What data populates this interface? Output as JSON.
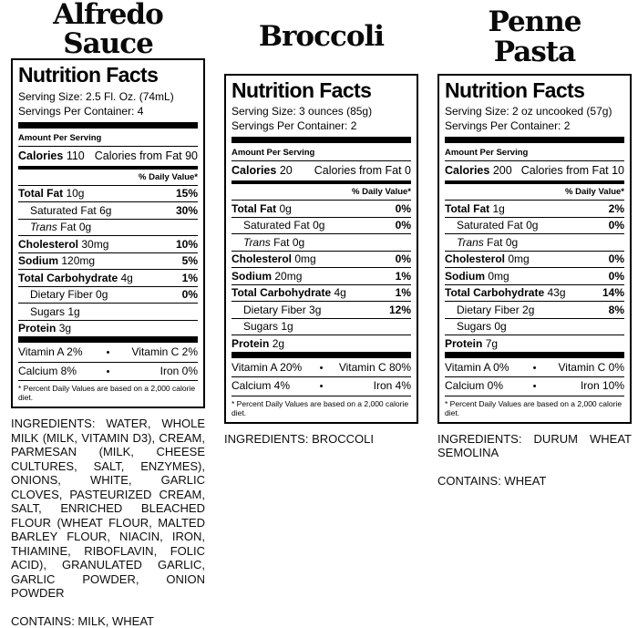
{
  "columns": [
    {
      "title": "Alfredo Sauce",
      "label": {
        "heading": "Nutrition Facts",
        "serving_size": "Serving Size: 2.5 Fl. Oz. (74mL)",
        "servings_per_container": "Servings Per Container: 4",
        "amount_per_serving": "Amount Per Serving",
        "calories_label": "Calories",
        "calories_value": "110",
        "calories_from_fat": "Calories from Fat 90",
        "daily_value_header": "% Daily Value*",
        "rows": [
          {
            "name": "Total Fat",
            "amount": "10g",
            "dv": "15%"
          },
          {
            "name": "Saturated Fat",
            "amount": "6g",
            "dv": "30%"
          },
          {
            "name": "Trans",
            "amount": "Fat 0g",
            "dv": ""
          },
          {
            "name": "Cholesterol",
            "amount": "30mg",
            "dv": "10%"
          },
          {
            "name": "Sodium",
            "amount": "120mg",
            "dv": "5%"
          },
          {
            "name": "Total Carbohydrate",
            "amount": "4g",
            "dv": "1%"
          },
          {
            "name": "Dietary Fiber",
            "amount": "0g",
            "dv": "0%"
          },
          {
            "name": "Sugars",
            "amount": "1g",
            "dv": ""
          },
          {
            "name": "Protein",
            "amount": "3g",
            "dv": ""
          }
        ],
        "micronutrients": [
          {
            "left": "Vitamin A 2%",
            "right": "Vitamin C 2%"
          },
          {
            "left": "Calcium 8%",
            "right": "Iron 0%"
          }
        ],
        "bullet": "•",
        "footnote": "* Percent Daily Values are based on a 2,000 calorie diet."
      },
      "ingredients": "INGREDIENTS: WATER, WHOLE MILK (MILK, VITAMIN D3), CREAM, PARMESAN (MILK, CHEESE CULTURES, SALT, ENZYMES), ONIONS, WHITE, GARLIC CLOVES, PASTEURIZED CREAM, SALT, ENRICHED BLEACHED FLOUR (WHEAT FLOUR, MALTED BARLEY FLOUR, NIACIN, IRON, THIAMINE, RIBOFLAVIN, FOLIC ACID), GRANULATED GARLIC, GARLIC POWDER, ONION POWDER",
      "contains": "CONTAINS: MILK, WHEAT"
    },
    {
      "title": "Broccoli",
      "label": {
        "heading": "Nutrition Facts",
        "serving_size": "Serving Size: 3 ounces (85g)",
        "servings_per_container": "Servings Per Container: 2",
        "amount_per_serving": "Amount Per Serving",
        "calories_label": "Calories",
        "calories_value": "20",
        "calories_from_fat": "Calories from Fat 0",
        "daily_value_header": "% Daily Value*",
        "rows": [
          {
            "name": "Total Fat",
            "amount": "0g",
            "dv": "0%"
          },
          {
            "name": "Saturated Fat",
            "amount": "0g",
            "dv": "0%"
          },
          {
            "name": "Trans",
            "amount": "Fat 0g",
            "dv": ""
          },
          {
            "name": "Cholesterol",
            "amount": "0mg",
            "dv": "0%"
          },
          {
            "name": "Sodium",
            "amount": "20mg",
            "dv": "1%"
          },
          {
            "name": "Total Carbohydrate",
            "amount": "4g",
            "dv": "1%"
          },
          {
            "name": "Dietary Fiber",
            "amount": "3g",
            "dv": "12%"
          },
          {
            "name": "Sugars",
            "amount": "1g",
            "dv": ""
          },
          {
            "name": "Protein",
            "amount": "2g",
            "dv": ""
          }
        ],
        "micronutrients": [
          {
            "left": "Vitamin A 20%",
            "right": "Vitamin C 80%"
          },
          {
            "left": "Calcium 4%",
            "right": "Iron 4%"
          }
        ],
        "bullet": "•",
        "footnote": "* Percent Daily Values are based on a 2,000 calorie diet."
      },
      "ingredients": "INGREDIENTS: BROCCOLI",
      "contains": ""
    },
    {
      "title": "Penne\nPasta",
      "label": {
        "heading": "Nutrition Facts",
        "serving_size": "Serving Size: 2 oz uncooked (57g)",
        "servings_per_container": "Servings Per Container: 2",
        "amount_per_serving": "Amount Per Serving",
        "calories_label": "Calories",
        "calories_value": "200",
        "calories_from_fat": "Calories from Fat 10",
        "daily_value_header": "% Daily Value*",
        "rows": [
          {
            "name": "Total Fat",
            "amount": "1g",
            "dv": "2%"
          },
          {
            "name": "Saturated Fat",
            "amount": "0g",
            "dv": "0%"
          },
          {
            "name": "Trans",
            "amount": "Fat 0g",
            "dv": ""
          },
          {
            "name": "Cholesterol",
            "amount": "0mg",
            "dv": "0%"
          },
          {
            "name": "Sodium",
            "amount": "0mg",
            "dv": "0%"
          },
          {
            "name": "Total Carbohydrate",
            "amount": "43g",
            "dv": "14%"
          },
          {
            "name": "Dietary Fiber",
            "amount": "2g",
            "dv": "8%"
          },
          {
            "name": "Sugars",
            "amount": "0g",
            "dv": ""
          },
          {
            "name": "Protein",
            "amount": "7g",
            "dv": ""
          }
        ],
        "micronutrients": [
          {
            "left": "Vitamin A 0%",
            "right": "Vitamin C 0%"
          },
          {
            "left": "Calcium 0%",
            "right": "Iron 10%"
          }
        ],
        "bullet": "•",
        "footnote": "* Percent Daily Values are based on a 2,000 calorie diet."
      },
      "ingredients": "INGREDIENTS: DURUM WHEAT SEMOLINA",
      "contains": "CONTAINS: WHEAT"
    }
  ]
}
